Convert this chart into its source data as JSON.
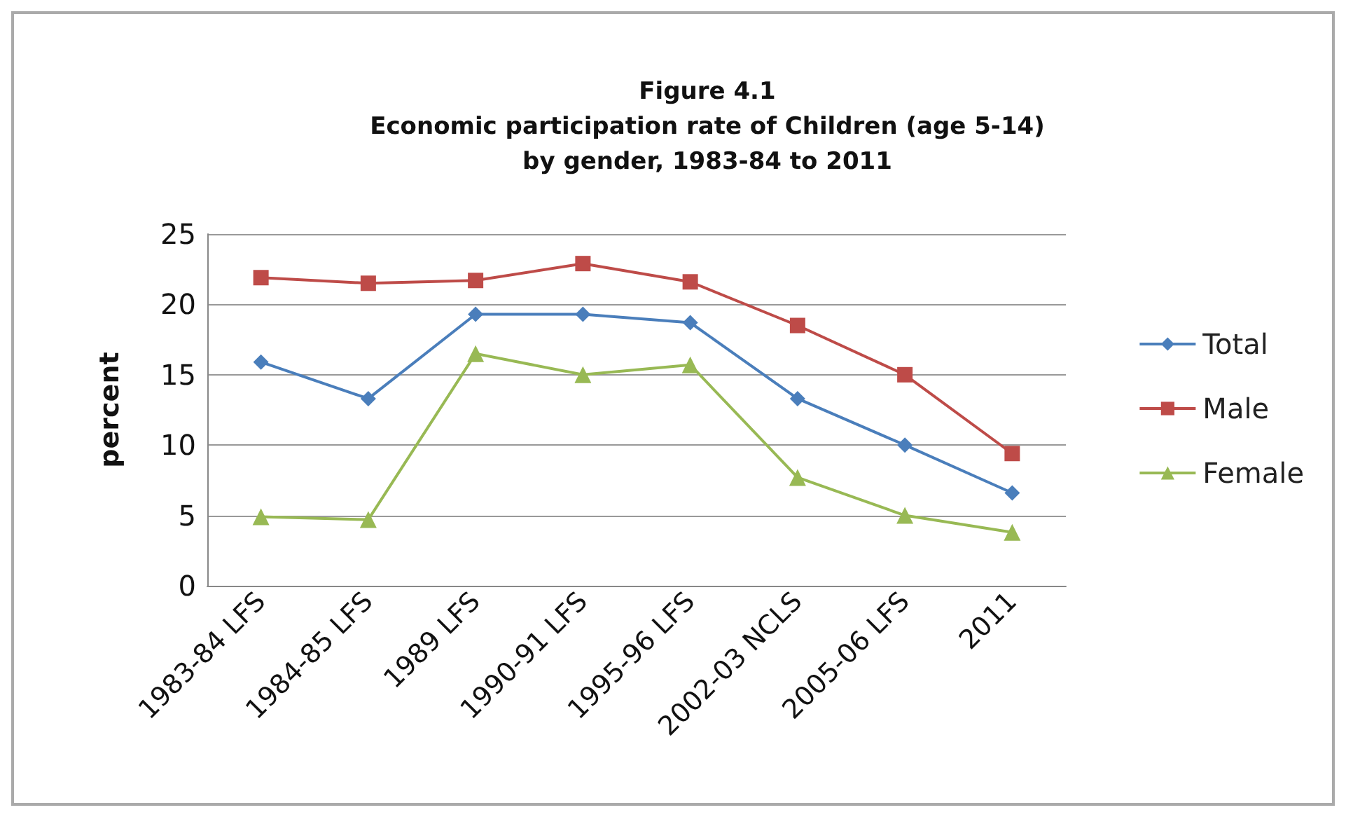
{
  "chart_data": {
    "type": "line",
    "title": "Figure 4.1\nEconomic participation rate of Children (age 5-14)\nby gender, 1983-84 to 2011",
    "ylabel": "percent",
    "categories": [
      "1983-84 LFS",
      "1984-85 LFS",
      "1989 LFS",
      "1990-91 LFS",
      "1995-96 LFS",
      "2002-03 NCLS",
      "2005-06 LFS",
      "2011"
    ],
    "series": [
      {
        "name": "Total",
        "color": "#4a7ebb",
        "marker": "diamond",
        "values": [
          15.9,
          13.3,
          19.3,
          19.3,
          18.7,
          13.3,
          10.0,
          6.6
        ]
      },
      {
        "name": "Male",
        "color": "#be4b48",
        "marker": "square",
        "values": [
          21.9,
          21.5,
          21.7,
          22.9,
          21.6,
          18.5,
          15.0,
          9.4
        ]
      },
      {
        "name": "Female",
        "color": "#98b954",
        "marker": "triangle",
        "values": [
          4.9,
          4.7,
          16.5,
          15.0,
          15.7,
          7.7,
          5.0,
          3.8
        ]
      }
    ],
    "ylim": [
      0,
      25
    ],
    "yticks": [
      0,
      5,
      10,
      15,
      20,
      25
    ],
    "grid": "y",
    "legend": "right"
  }
}
